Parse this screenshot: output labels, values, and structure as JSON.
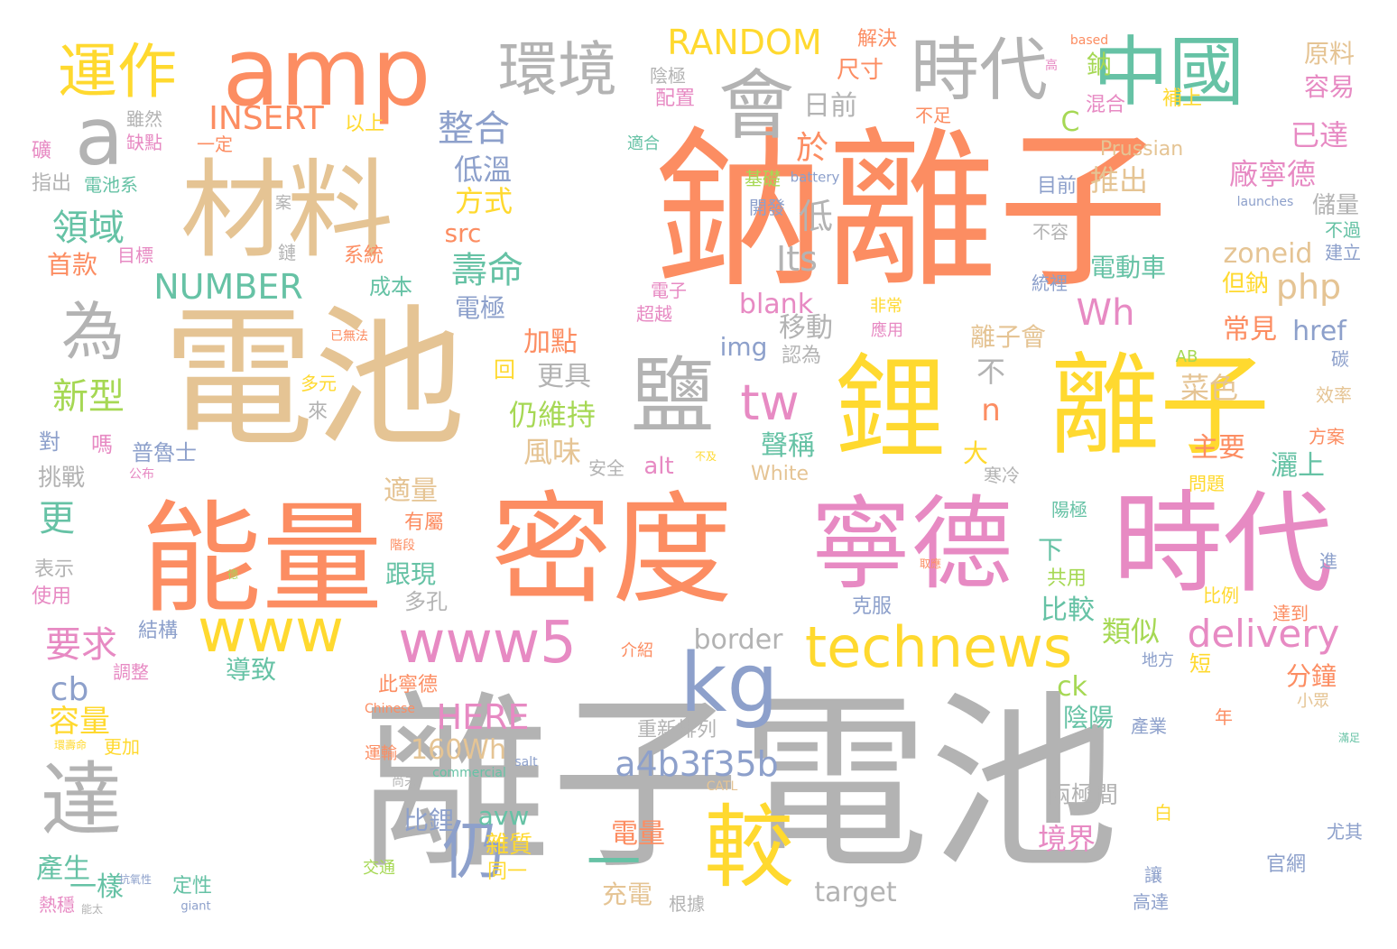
{
  "palette": {
    "orange": "#fc8d62",
    "gray": "#b3b3b3",
    "tan": "#e5c494",
    "yellow": "#ffd92f",
    "pink": "#e78ac3",
    "green": "#66c2a5",
    "blue": "#8da0cb",
    "lime": "#a6d854"
  },
  "words": [
    {
      "text": "離子電池",
      "color": "#b3b3b3"
    },
    {
      "text": "鈉離子",
      "color": "#fc8d62"
    },
    {
      "text": "電池",
      "color": "#e5c494"
    },
    {
      "text": "能量",
      "color": "#fc8d62"
    },
    {
      "text": "密度",
      "color": "#fc8d62"
    },
    {
      "text": "寧德",
      "color": "#e78ac3"
    },
    {
      "text": "時代",
      "color": "#e78ac3"
    },
    {
      "text": "鋰",
      "color": "#ffd92f"
    },
    {
      "text": "離子",
      "color": "#ffd92f"
    },
    {
      "text": "材料",
      "color": "#e5c494"
    },
    {
      "text": "amp",
      "color": "#fc8d62"
    },
    {
      "text": "中國",
      "color": "#66c2a5"
    },
    {
      "text": "鹽",
      "color": "#b3b3b3"
    },
    {
      "text": "會",
      "color": "#b3b3b3"
    },
    {
      "text": "環境",
      "color": "#b3b3b3"
    },
    {
      "text": "時代",
      "color": "#b3b3b3"
    },
    {
      "text": "運作",
      "color": "#ffd92f"
    },
    {
      "text": "a",
      "color": "#b3b3b3"
    },
    {
      "text": "為",
      "color": "#b3b3b3"
    },
    {
      "text": "technews",
      "color": "#ffd92f"
    },
    {
      "text": "www5",
      "color": "#e78ac3"
    },
    {
      "text": "www",
      "color": "#ffd92f"
    },
    {
      "text": "kg",
      "color": "#8da0cb"
    },
    {
      "text": "較",
      "color": "#ffd92f"
    },
    {
      "text": "一",
      "color": "#66c2a5"
    },
    {
      "text": "仍",
      "color": "#8da0cb"
    },
    {
      "text": "達",
      "color": "#b3b3b3"
    },
    {
      "text": "tw",
      "color": "#e78ac3"
    },
    {
      "text": "a4b3f35b",
      "color": "#8da0cb"
    },
    {
      "text": "delivery",
      "color": "#e78ac3"
    },
    {
      "text": "RANDOM",
      "color": "#ffd92f"
    },
    {
      "text": "NUMBER",
      "color": "#66c2a5"
    },
    {
      "text": "INSERT",
      "color": "#fc8d62"
    },
    {
      "text": "HERE",
      "color": "#e78ac3"
    },
    {
      "text": "160Wh",
      "color": "#e5c494"
    },
    {
      "text": "php",
      "color": "#e5c494"
    },
    {
      "text": "zoneid",
      "color": "#e5c494"
    },
    {
      "text": "Wh",
      "color": "#e78ac3"
    },
    {
      "text": "Its",
      "color": "#b3b3b3"
    },
    {
      "text": "blank",
      "color": "#e78ac3"
    },
    {
      "text": "border",
      "color": "#b3b3b3"
    },
    {
      "text": "target",
      "color": "#b3b3b3"
    },
    {
      "text": "href",
      "color": "#8da0cb"
    },
    {
      "text": "img",
      "color": "#8da0cb"
    },
    {
      "text": "cb",
      "color": "#8da0cb"
    },
    {
      "text": "ck",
      "color": "#a6d854"
    },
    {
      "text": "alt",
      "color": "#e78ac3"
    },
    {
      "text": "avw",
      "color": "#66c2a5"
    },
    {
      "text": "src",
      "color": "#fc8d62"
    },
    {
      "text": "Prussian",
      "color": "#e5c494"
    },
    {
      "text": "White",
      "color": "#e5c494"
    },
    {
      "text": "C",
      "color": "#a6d854"
    },
    {
      "text": "n",
      "color": "#fc8d62"
    },
    {
      "text": "AB",
      "color": "#a6d854"
    },
    {
      "text": "CATL",
      "color": "#e5c494"
    },
    {
      "text": "salt",
      "color": "#8da0cb"
    },
    {
      "text": "commercial",
      "color": "#66c2a5"
    },
    {
      "text": "Chinese",
      "color": "#fc8d62"
    },
    {
      "text": "giant",
      "color": "#8da0cb"
    },
    {
      "text": "battery",
      "color": "#8da0cb"
    },
    {
      "text": "launches",
      "color": "#8da0cb"
    },
    {
      "text": "based",
      "color": "#fc8d62"
    },
    {
      "text": "整合",
      "color": "#8da0cb"
    },
    {
      "text": "日前",
      "color": "#b3b3b3"
    },
    {
      "text": "於",
      "color": "#fc8d62"
    },
    {
      "text": "低",
      "color": "#b3b3b3"
    },
    {
      "text": "低溫",
      "color": "#8da0cb"
    },
    {
      "text": "方式",
      "color": "#ffd92f"
    },
    {
      "text": "壽命",
      "color": "#66c2a5"
    },
    {
      "text": "電極",
      "color": "#8da0cb"
    },
    {
      "text": "領域",
      "color": "#66c2a5"
    },
    {
      "text": "首款",
      "color": "#fc8d62"
    },
    {
      "text": "新型",
      "color": "#a6d854"
    },
    {
      "text": "要求",
      "color": "#e78ac3"
    },
    {
      "text": "更",
      "color": "#66c2a5"
    },
    {
      "text": "容量",
      "color": "#ffd92f"
    },
    {
      "text": "產生",
      "color": "#66c2a5"
    },
    {
      "text": "一樣",
      "color": "#66c2a5"
    },
    {
      "text": "熱穩",
      "color": "#e78ac3"
    },
    {
      "text": "更加",
      "color": "#ffd92f"
    },
    {
      "text": "調整",
      "color": "#e78ac3"
    },
    {
      "text": "結構",
      "color": "#8da0cb"
    },
    {
      "text": "導致",
      "color": "#66c2a5"
    },
    {
      "text": "電量",
      "color": "#fc8d62"
    },
    {
      "text": "充電",
      "color": "#e5c494"
    },
    {
      "text": "根據",
      "color": "#b3b3b3"
    },
    {
      "text": "比鋰",
      "color": "#8da0cb"
    },
    {
      "text": "雜質",
      "color": "#ffd92f"
    },
    {
      "text": "同一",
      "color": "#ffd92f"
    },
    {
      "text": "多孔",
      "color": "#b3b3b3"
    },
    {
      "text": "跟現",
      "color": "#66c2a5"
    },
    {
      "text": "有屬",
      "color": "#fc8d62"
    },
    {
      "text": "適量",
      "color": "#e5c494"
    },
    {
      "text": "風味",
      "color": "#e5c494"
    },
    {
      "text": "仍維持",
      "color": "#a6d854"
    },
    {
      "text": "更具",
      "color": "#b3b3b3"
    },
    {
      "text": "加點",
      "color": "#fc8d62"
    },
    {
      "text": "回",
      "color": "#ffd92f"
    },
    {
      "text": "移動",
      "color": "#b3b3b3"
    },
    {
      "text": "認為",
      "color": "#b3b3b3"
    },
    {
      "text": "聲稱",
      "color": "#66c2a5"
    },
    {
      "text": "不",
      "color": "#b3b3b3"
    },
    {
      "text": "大",
      "color": "#ffd92f"
    },
    {
      "text": "寒冷",
      "color": "#b3b3b3"
    },
    {
      "text": "下",
      "color": "#66c2a5"
    },
    {
      "text": "共用",
      "color": "#a6d854"
    },
    {
      "text": "比較",
      "color": "#66c2a5"
    },
    {
      "text": "陰陽",
      "color": "#66c2a5"
    },
    {
      "text": "兩極間",
      "color": "#b3b3b3"
    },
    {
      "text": "境界",
      "color": "#e78ac3"
    },
    {
      "text": "類似",
      "color": "#a6d854"
    },
    {
      "text": "短",
      "color": "#ffd92f"
    },
    {
      "text": "分鐘",
      "color": "#fc8d62"
    },
    {
      "text": "常見",
      "color": "#fc8d62"
    },
    {
      "text": "離子會",
      "color": "#e5c494"
    },
    {
      "text": "但鈉",
      "color": "#ffd92f"
    },
    {
      "text": "電動車",
      "color": "#66c2a5"
    },
    {
      "text": "推出",
      "color": "#e5c494"
    },
    {
      "text": "廠寧德",
      "color": "#e78ac3"
    },
    {
      "text": "已達",
      "color": "#e78ac3"
    },
    {
      "text": "儲量",
      "color": "#b3b3b3"
    },
    {
      "text": "菜色",
      "color": "#e5c494"
    },
    {
      "text": "主要",
      "color": "#fc8d62"
    },
    {
      "text": "灑上",
      "color": "#66c2a5"
    },
    {
      "text": "原料",
      "color": "#e5c494"
    },
    {
      "text": "容易",
      "color": "#e78ac3"
    },
    {
      "text": "補上",
      "color": "#ffd92f"
    },
    {
      "text": "混合",
      "color": "#e78ac3"
    },
    {
      "text": "不過",
      "color": "#66c2a5"
    },
    {
      "text": "建立",
      "color": "#8da0cb"
    },
    {
      "text": "碳",
      "color": "#8da0cb"
    },
    {
      "text": "效率",
      "color": "#e5c494"
    },
    {
      "text": "方案",
      "color": "#fc8d62"
    },
    {
      "text": "問題",
      "color": "#ffd92f"
    },
    {
      "text": "陽極",
      "color": "#66c2a5"
    },
    {
      "text": "比例",
      "color": "#ffd92f"
    },
    {
      "text": "達到",
      "color": "#fc8d62"
    },
    {
      "text": "地方",
      "color": "#8da0cb"
    },
    {
      "text": "小眾",
      "color": "#e5c494"
    },
    {
      "text": "年",
      "color": "#fc8d62"
    },
    {
      "text": "產業",
      "color": "#8da0cb"
    },
    {
      "text": "白",
      "color": "#ffd92f"
    },
    {
      "text": "官網",
      "color": "#8da0cb"
    },
    {
      "text": "尤其",
      "color": "#8da0cb"
    },
    {
      "text": "高達",
      "color": "#8da0cb"
    },
    {
      "text": "讓",
      "color": "#8da0cb"
    },
    {
      "text": "進",
      "color": "#8da0cb"
    },
    {
      "text": "滿足",
      "color": "#66c2a5"
    },
    {
      "text": "鈉",
      "color": "#a6d854"
    },
    {
      "text": "目前",
      "color": "#8da0cb"
    },
    {
      "text": "不容",
      "color": "#b3b3b3"
    },
    {
      "text": "統裡",
      "color": "#8da0cb"
    },
    {
      "text": "不足",
      "color": "#fc8d62"
    },
    {
      "text": "解決",
      "color": "#fc8d62"
    },
    {
      "text": "尺寸",
      "color": "#fc8d62"
    },
    {
      "text": "陰極",
      "color": "#b3b3b3"
    },
    {
      "text": "配置",
      "color": "#e78ac3"
    },
    {
      "text": "適合",
      "color": "#66c2a5"
    },
    {
      "text": "基礎",
      "color": "#a6d854"
    },
    {
      "text": "開發",
      "color": "#8da0cb"
    },
    {
      "text": "電子",
      "color": "#e78ac3"
    },
    {
      "text": "超越",
      "color": "#e78ac3"
    },
    {
      "text": "非常",
      "color": "#ffd92f"
    },
    {
      "text": "應用",
      "color": "#e78ac3"
    },
    {
      "text": "已無法",
      "color": "#fc8d62"
    },
    {
      "text": "成本",
      "color": "#66c2a5"
    },
    {
      "text": "系統",
      "color": "#fc8d62"
    },
    {
      "text": "鏈",
      "color": "#b3b3b3"
    },
    {
      "text": "案",
      "color": "#b3b3b3"
    },
    {
      "text": "雖然",
      "color": "#b3b3b3"
    },
    {
      "text": "缺點",
      "color": "#e78ac3"
    },
    {
      "text": "一定",
      "color": "#fc8d62"
    },
    {
      "text": "以上",
      "color": "#ffd92f"
    },
    {
      "text": "礦",
      "color": "#e78ac3"
    },
    {
      "text": "指出",
      "color": "#b3b3b3"
    },
    {
      "text": "電池系",
      "color": "#66c2a5"
    },
    {
      "text": "目標",
      "color": "#e78ac3"
    },
    {
      "text": "多元",
      "color": "#ffd92f"
    },
    {
      "text": "來",
      "color": "#b3b3b3"
    },
    {
      "text": "對",
      "color": "#8da0cb"
    },
    {
      "text": "嗎",
      "color": "#e78ac3"
    },
    {
      "text": "普魯士",
      "color": "#8da0cb"
    },
    {
      "text": "挑戰",
      "color": "#b3b3b3"
    },
    {
      "text": "公布",
      "color": "#e78ac3"
    },
    {
      "text": "安全",
      "color": "#b3b3b3"
    },
    {
      "text": "不及",
      "color": "#ffd92f"
    },
    {
      "text": "表示",
      "color": "#b3b3b3"
    },
    {
      "text": "使用",
      "color": "#e78ac3"
    },
    {
      "text": "階段",
      "color": "#fc8d62"
    },
    {
      "text": "德",
      "color": "#a6d854"
    },
    {
      "text": "取應",
      "color": "#fc8d62"
    },
    {
      "text": "介紹",
      "color": "#fc8d62"
    },
    {
      "text": "克服",
      "color": "#8da0cb"
    },
    {
      "text": "此寧德",
      "color": "#fc8d62"
    },
    {
      "text": "重新排列",
      "color": "#b3b3b3"
    },
    {
      "text": "運輸",
      "color": "#fc8d62"
    },
    {
      "text": "尚未",
      "color": "#b3b3b3"
    },
    {
      "text": "環壽命",
      "color": "#ffd92f"
    },
    {
      "text": "抗氧性",
      "color": "#8da0cb"
    },
    {
      "text": "定性",
      "color": "#66c2a5"
    },
    {
      "text": "交通",
      "color": "#a6d854"
    },
    {
      "text": "能太",
      "color": "#b3b3b3"
    },
    {
      "text": "高",
      "color": "#e78ac3"
    }
  ]
}
